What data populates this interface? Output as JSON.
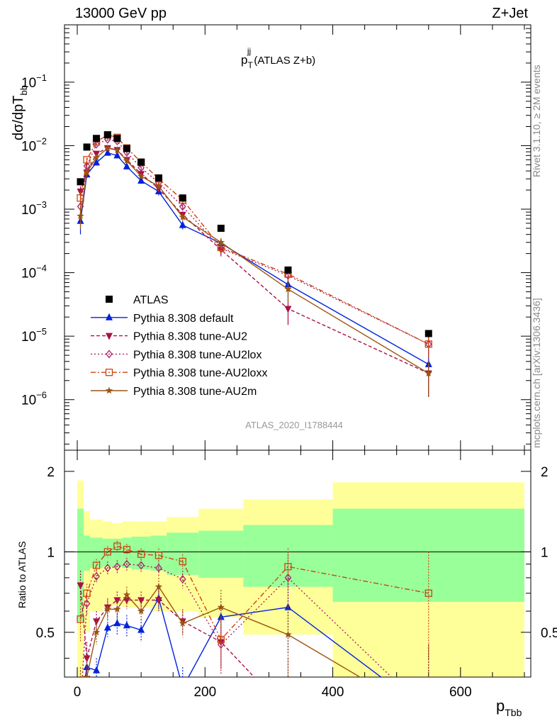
{
  "header": {
    "left": "13000 GeV pp",
    "right": "Z+Jet"
  },
  "side_labels": {
    "rivet": "Rivet 3.1.10, ≥ 2M events",
    "mcplots": "mcplots.cern.ch [arXiv:1306.3436]"
  },
  "watermark": "ATLAS_2020_I1788444",
  "plot_title": {
    "main": "p",
    "sup": "jj",
    "sub": "T",
    "rest": " (ATLAS Z+b)"
  },
  "axes": {
    "ylabel_top": {
      "main": "dσ/dpT",
      "sub": "bb"
    },
    "ylabel_ratio": "Ratio to ATLAS",
    "xlabel": {
      "main": "p",
      "sub": "Tbb"
    },
    "x_ticks": [
      "0",
      "200",
      "400",
      "600"
    ],
    "y_ticks_top": [
      {
        "base": "10",
        "exp": "−1",
        "v": -1
      },
      {
        "base": "10",
        "exp": "−2",
        "v": -2
      },
      {
        "base": "10",
        "exp": "−3",
        "v": -3
      },
      {
        "base": "10",
        "exp": "−4",
        "v": -4
      },
      {
        "base": "10",
        "exp": "−5",
        "v": -5
      },
      {
        "base": "10",
        "exp": "−6",
        "v": -6
      }
    ],
    "y_ticks_ratio": [
      "0.5",
      "1",
      "2"
    ]
  },
  "legend": [
    {
      "label": "ATLAS",
      "key": "atlas"
    },
    {
      "label": "Pythia 8.308 default",
      "key": "default"
    },
    {
      "label": "Pythia 8.308 tune-AU2",
      "key": "au2"
    },
    {
      "label": "Pythia 8.308 tune-AU2lox",
      "key": "au2lox"
    },
    {
      "label": "Pythia 8.308 tune-AU2loxx",
      "key": "au2loxx"
    },
    {
      "label": "Pythia 8.308 tune-AU2m",
      "key": "au2m"
    }
  ],
  "chart_data": {
    "type": "scatter",
    "x_range": [
      -20,
      710
    ],
    "y_range_log": [
      1.6e-07,
      0.8
    ],
    "y_range_ratio": [
      0.34,
      2.4
    ],
    "y_scale": "log",
    "bins": [
      [
        0,
        10
      ],
      [
        10,
        20
      ],
      [
        20,
        40
      ],
      [
        40,
        55
      ],
      [
        55,
        70
      ],
      [
        70,
        85
      ],
      [
        85,
        115
      ],
      [
        115,
        140
      ],
      [
        140,
        190
      ],
      [
        190,
        260
      ],
      [
        260,
        400
      ],
      [
        400,
        700
      ]
    ],
    "x": [
      5,
      15,
      30,
      47.5,
      62.5,
      77.5,
      100,
      127.5,
      165,
      225,
      330,
      550
    ],
    "atlas": {
      "name": "ATLAS",
      "color": "#000000",
      "values": [
        0.0027,
        0.0095,
        0.013,
        0.0148,
        0.013,
        0.009,
        0.0055,
        0.0031,
        0.0015,
        0.0005,
        0.00011,
        1.1e-05
      ],
      "band_inner": [
        [
          0.55,
          1.45
        ],
        [
          0.85,
          1.15
        ],
        [
          0.87,
          1.13
        ],
        [
          0.88,
          1.12
        ],
        [
          0.88,
          1.12
        ],
        [
          0.87,
          1.13
        ],
        [
          0.86,
          1.14
        ],
        [
          0.85,
          1.15
        ],
        [
          0.82,
          1.18
        ],
        [
          0.8,
          1.2
        ],
        [
          0.74,
          1.26
        ],
        [
          0.65,
          1.45
        ]
      ],
      "band_outer": [
        [
          0.33,
          1.85
        ],
        [
          0.5,
          1.42
        ],
        [
          0.6,
          1.32
        ],
        [
          0.62,
          1.3
        ],
        [
          0.63,
          1.28
        ],
        [
          0.62,
          1.3
        ],
        [
          0.62,
          1.3
        ],
        [
          0.6,
          1.3
        ],
        [
          0.6,
          1.35
        ],
        [
          0.57,
          1.45
        ],
        [
          0.49,
          1.57
        ],
        [
          0.33,
          1.82
        ]
      ]
    },
    "series": [
      {
        "name": "Pythia 8.308 default",
        "key": "default",
        "color": "#0022dd",
        "dash": "",
        "marker": "triangle-up",
        "values": [
          0.00065,
          0.0035,
          0.0054,
          0.0077,
          0.007,
          0.0047,
          0.0028,
          0.0019,
          0.00056,
          0.00029,
          6.5e-05,
          3.6e-06
        ],
        "errors": [
          0.00025,
          0.0004,
          0.0005,
          0.0006,
          0.0006,
          0.0005,
          0.0003,
          0.00025,
          8e-05,
          5e-05,
          2.5e-05,
          2.5e-06
        ],
        "ratio": [
          0.26,
          0.37,
          0.36,
          0.52,
          0.54,
          0.53,
          0.51,
          0.67,
          0.31,
          0.57,
          0.62,
          0.25
        ],
        "ratio_err": [
          0.08,
          0.05,
          0.04,
          0.04,
          0.05,
          0.05,
          0.05,
          0.06,
          0.06,
          0.1,
          0.2,
          0.2
        ]
      },
      {
        "name": "Pythia 8.308 tune-AU2",
        "key": "au2",
        "color": "#aa1144",
        "dash": "5,3",
        "marker": "triangle-down",
        "values": [
          0.0019,
          0.0038,
          0.0075,
          0.0092,
          0.0086,
          0.006,
          0.0036,
          0.0021,
          0.00082,
          0.00023,
          2.7e-05,
          2.6e-06
        ],
        "errors": [
          0.0004,
          0.0005,
          0.0006,
          0.0006,
          0.0006,
          0.0005,
          0.0003,
          0.00025,
          0.0001,
          5e-05,
          1.2e-05,
          1.5e-06
        ],
        "ratio": [
          0.75,
          0.4,
          0.55,
          0.62,
          0.66,
          0.66,
          0.66,
          0.66,
          0.55,
          0.46,
          0.25,
          0.24
        ],
        "ratio_err": [
          0.1,
          0.06,
          0.05,
          0.05,
          0.05,
          0.05,
          0.05,
          0.06,
          0.06,
          0.1,
          0.15,
          0.2
        ]
      },
      {
        "name": "Pythia 8.308 tune-AU2lox",
        "key": "au2lox",
        "color": "#aa2266",
        "dash": "2,3",
        "marker": "diamond-open",
        "values": [
          0.0011,
          0.0048,
          0.0105,
          0.0125,
          0.0118,
          0.0078,
          0.0045,
          0.0026,
          0.0011,
          0.00024,
          9e-05,
          7.5e-06
        ],
        "errors": [
          0.0004,
          0.0005,
          0.0006,
          0.0007,
          0.0007,
          0.0006,
          0.0004,
          0.0003,
          0.00012,
          5e-05,
          2e-05,
          3e-06
        ],
        "ratio": [
          0.26,
          0.64,
          0.81,
          0.87,
          0.88,
          0.9,
          0.89,
          0.87,
          0.79,
          0.45,
          0.8,
          0.25
        ],
        "ratio_err": [
          0.1,
          0.06,
          0.05,
          0.05,
          0.05,
          0.05,
          0.05,
          0.06,
          0.06,
          0.1,
          0.2,
          0.2
        ]
      },
      {
        "name": "Pythia 8.308 tune-AU2loxx",
        "key": "au2loxx",
        "color": "#cc4411",
        "dash": "7,3,2,3",
        "marker": "square-open",
        "values": [
          0.0015,
          0.006,
          0.0115,
          0.0148,
          0.0135,
          0.0092,
          0.0055,
          0.003,
          0.0014,
          0.00025,
          9.5e-05,
          7.5e-06
        ],
        "errors": [
          0.0004,
          0.0005,
          0.0006,
          0.0007,
          0.0007,
          0.0006,
          0.0004,
          0.0003,
          0.00012,
          5e-05,
          2e-05,
          3e-06
        ],
        "ratio": [
          0.56,
          0.7,
          0.89,
          1.0,
          1.05,
          1.02,
          0.98,
          0.97,
          0.92,
          0.47,
          0.88,
          0.7
        ],
        "ratio_err": [
          0.1,
          0.06,
          0.05,
          0.05,
          0.05,
          0.05,
          0.05,
          0.06,
          0.06,
          0.1,
          0.15,
          0.3
        ]
      },
      {
        "name": "Pythia 8.308 tune-AU2m",
        "key": "au2m",
        "color": "#995511",
        "dash": "",
        "marker": "star",
        "values": [
          0.00078,
          0.0038,
          0.0065,
          0.0091,
          0.0085,
          0.0058,
          0.0033,
          0.0023,
          0.00075,
          0.0003,
          5.5e-05,
          2.6e-06
        ],
        "errors": [
          0.0003,
          0.0004,
          0.0005,
          0.0006,
          0.0006,
          0.0005,
          0.0003,
          0.00025,
          0.0001,
          5e-05,
          2e-05,
          1.5e-06
        ],
        "ratio": [
          0.29,
          0.34,
          0.5,
          0.61,
          0.61,
          0.69,
          0.6,
          0.74,
          0.54,
          0.62,
          0.49,
          0.24
        ],
        "ratio_err": [
          0.08,
          0.06,
          0.05,
          0.05,
          0.05,
          0.05,
          0.05,
          0.06,
          0.06,
          0.1,
          0.15,
          0.2
        ]
      }
    ]
  }
}
